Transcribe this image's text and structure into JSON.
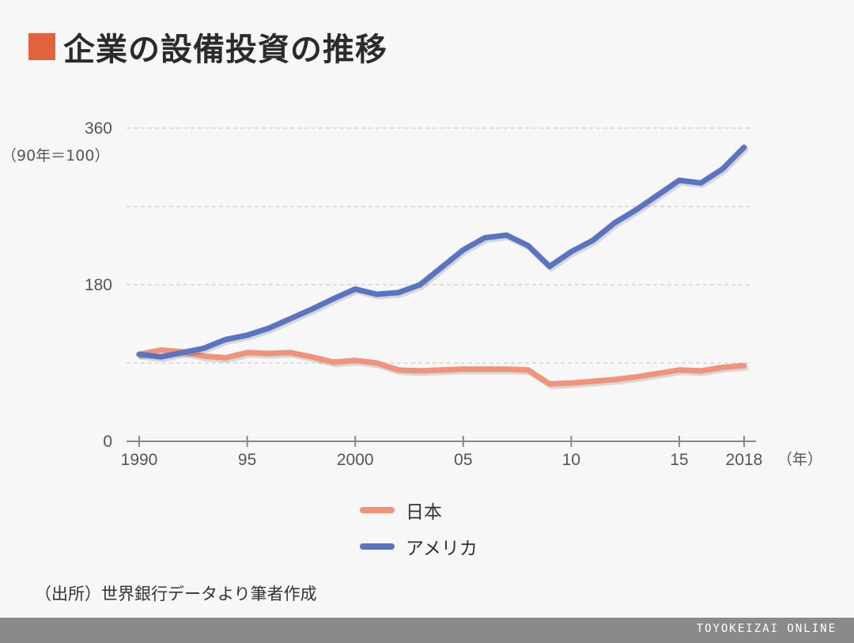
{
  "header": {
    "title": "企業の設備投資の推移"
  },
  "chart_data": {
    "type": "line",
    "unit_label": "（90年＝100）",
    "x_unit_label": "（年）",
    "ylim": [
      0,
      360
    ],
    "yticks": [
      0,
      180,
      360
    ],
    "ygrid": [
      90,
      180,
      270,
      360
    ],
    "xlim": [
      1990,
      2018
    ],
    "xticks": [
      {
        "year": 1990,
        "label": "1990"
      },
      {
        "year": 1995,
        "label": "95"
      },
      {
        "year": 2000,
        "label": "2000"
      },
      {
        "year": 2005,
        "label": "05"
      },
      {
        "year": 2010,
        "label": "10"
      },
      {
        "year": 2015,
        "label": "15"
      },
      {
        "year": 2018,
        "label": "2018"
      }
    ],
    "x": [
      1990,
      1991,
      1992,
      1993,
      1994,
      1995,
      1996,
      1997,
      1998,
      1999,
      2000,
      2001,
      2002,
      2003,
      2004,
      2005,
      2006,
      2007,
      2008,
      2009,
      2010,
      2011,
      2012,
      2013,
      2014,
      2015,
      2016,
      2017,
      2018
    ],
    "series": [
      {
        "name": "日本",
        "color": "#f0937a",
        "values": [
          100,
          105,
          103,
          98,
          96,
          102,
          101,
          102,
          97,
          91,
          93,
          90,
          82,
          81,
          82,
          83,
          83,
          83,
          82,
          66,
          67,
          69,
          71,
          74,
          78,
          82,
          81,
          85,
          87
        ]
      },
      {
        "name": "アメリカ",
        "color": "#5a74c2",
        "values": [
          100,
          97,
          102,
          107,
          117,
          122,
          130,
          141,
          152,
          164,
          175,
          169,
          171,
          180,
          200,
          220,
          234,
          237,
          225,
          201,
          218,
          231,
          251,
          266,
          283,
          300,
          297,
          313,
          338
        ]
      }
    ]
  },
  "legend": [
    {
      "label": "日本",
      "color": "#f0937a"
    },
    {
      "label": "アメリカ",
      "color": "#5a74c2"
    }
  ],
  "source": "（出所）世界銀行データより筆者作成",
  "footer": {
    "brand": "TOYOKEIZAI ONLINE"
  }
}
